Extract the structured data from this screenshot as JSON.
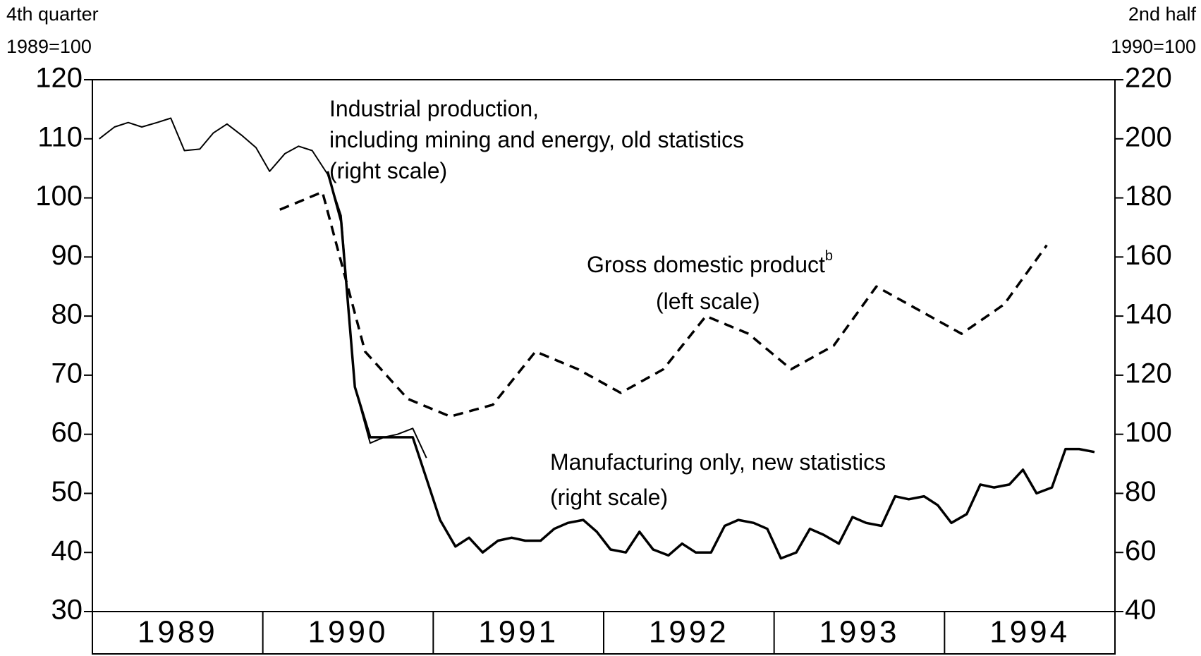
{
  "chart_data": {
    "type": "line",
    "y_title": [
      "4th quarter",
      "1989=100"
    ],
    "y2_title": [
      "2nd half",
      "1990=100"
    ],
    "categories": [
      "1989",
      "1990",
      "1991",
      "1992",
      "1993",
      "1994"
    ],
    "xlim": [
      1989,
      1995
    ],
    "ylim": [
      30,
      120
    ],
    "yticks": [
      30,
      40,
      50,
      60,
      70,
      80,
      90,
      100,
      110,
      120
    ],
    "y2lim": [
      40,
      220
    ],
    "y2ticks": [
      40,
      60,
      80,
      100,
      120,
      140,
      160,
      180,
      200,
      220
    ],
    "series": [
      {
        "label": [
          "Industrial production,",
          "including mining and energy, old statistics",
          "(right scale)"
        ],
        "axis": "y2",
        "color": "#000",
        "width": 2,
        "dashed": false,
        "x": [
          1989.04,
          1989.13,
          1989.21,
          1989.29,
          1989.38,
          1989.46,
          1989.54,
          1989.63,
          1989.71,
          1989.79,
          1989.88,
          1989.96,
          1990.04,
          1990.13,
          1990.21,
          1990.29,
          1990.38,
          1990.46,
          1990.54,
          1990.63,
          1990.71,
          1990.79,
          1990.88,
          1990.96
        ],
        "values": [
          200,
          204,
          205.5,
          204,
          205.5,
          207,
          196,
          196.5,
          202,
          205,
          201,
          197,
          189,
          195,
          197.5,
          196,
          188,
          174,
          116,
          97,
          99,
          100,
          102,
          92
        ]
      },
      {
        "label": [
          "Gross domestic product",
          "(left scale)"
        ],
        "label_sup": "b",
        "axis": "y",
        "color": "#000",
        "width": 3.5,
        "dashed": true,
        "x": [
          1990.1,
          1990.35,
          1990.6,
          1990.85,
          1991.1,
          1991.35,
          1991.6,
          1991.85,
          1992.1,
          1992.35,
          1992.6,
          1992.85,
          1993.1,
          1993.35,
          1993.6,
          1993.85,
          1994.1,
          1994.35,
          1994.6
        ],
        "values": [
          98,
          101,
          74,
          66,
          63,
          65,
          74,
          71,
          67,
          71,
          80,
          77,
          71,
          75,
          85,
          81,
          77,
          82,
          92
        ]
      },
      {
        "label": [
          "Manufacturing only, new statistics",
          "(right scale)"
        ],
        "axis": "y2",
        "color": "#000",
        "width": 3.5,
        "dashed": false,
        "x": [
          1990.38,
          1990.46,
          1990.54,
          1990.63,
          1990.71,
          1990.79,
          1990.88,
          1990.96,
          1991.04,
          1991.13,
          1991.21,
          1991.29,
          1991.38,
          1991.46,
          1991.54,
          1991.63,
          1991.71,
          1991.79,
          1991.88,
          1991.96,
          1992.04,
          1992.13,
          1992.21,
          1992.29,
          1992.38,
          1992.46,
          1992.54,
          1992.63,
          1992.71,
          1992.79,
          1992.88,
          1992.96,
          1993.04,
          1993.13,
          1993.21,
          1993.29,
          1993.38,
          1993.46,
          1993.54,
          1993.63,
          1993.71,
          1993.79,
          1993.88,
          1993.96,
          1994.04,
          1994.13,
          1994.21,
          1994.29,
          1994.38,
          1994.46,
          1994.54,
          1994.63,
          1994.71,
          1994.79,
          1994.88
        ],
        "values": [
          189,
          172,
          116,
          99,
          99,
          99,
          99,
          85,
          71,
          62,
          65,
          60,
          64,
          65,
          64,
          64,
          68,
          70,
          71,
          67,
          61,
          60,
          67,
          61,
          59,
          63,
          60,
          60,
          69,
          71,
          70,
          68,
          58,
          60,
          68,
          66,
          63,
          72,
          70,
          69,
          79,
          78,
          79,
          76,
          70,
          73,
          83,
          82,
          83,
          88,
          80,
          82,
          95,
          95,
          94
        ]
      }
    ]
  }
}
